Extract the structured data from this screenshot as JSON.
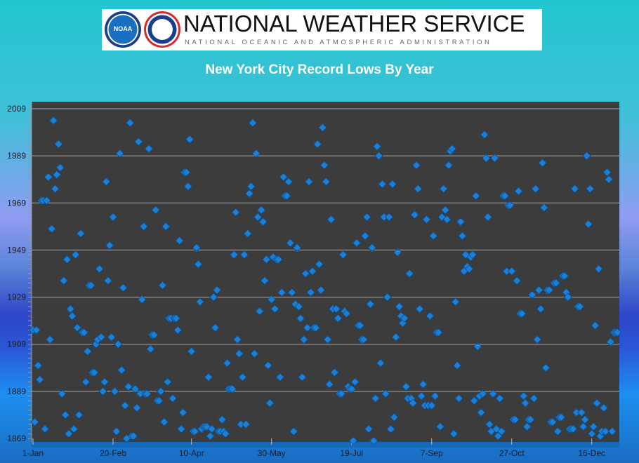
{
  "header": {
    "org_name": "NATIONAL WEATHER SERVICE",
    "org_subtitle": "NATIONAL OCEANIC AND ATMOSPHERIC ADMINISTRATION",
    "noaa_logo_text": "NOAA"
  },
  "chart_data": {
    "type": "scatter",
    "title": "New York City Record Lows By Year",
    "xlabel": "",
    "ylabel": "",
    "x_tick_labels": [
      "1-Jan",
      "20-Feb",
      "10-Apr",
      "30-May",
      "19-Jul",
      "7-Sep",
      "27-Oct",
      "16-Dec"
    ],
    "x_tick_days": [
      1,
      51,
      100,
      150,
      200,
      250,
      300,
      350
    ],
    "y_ticks": [
      1869,
      1889,
      1909,
      1929,
      1949,
      1969,
      1989,
      2009
    ],
    "ylim": [
      1869,
      2009
    ],
    "xlim_days": [
      1,
      366
    ],
    "grid": "horizontal",
    "marker_color": "#1b7fd6",
    "plot_background": "#3c3c3c",
    "x_unit": "day of year (points in date order)",
    "y_unit": "year of record low",
    "values": [
      1915,
      1876,
      1915,
      1900,
      1894,
      1970,
      1970,
      1873,
      1970,
      1980,
      1911,
      1958,
      2004,
      1975,
      1981,
      1994,
      1984,
      1888,
      1936,
      1879,
      1945,
      1871,
      1924,
      1921,
      1873,
      1947,
      1916,
      1879,
      1956,
      1914,
      1914,
      1893,
      1906,
      1934,
      1934,
      1897,
      1897,
      1909,
      1911,
      1941,
      1912,
      1889,
      1893,
      1978,
      1936,
      1951,
      1912,
      1963,
      1889,
      1872,
      1909,
      1990,
      1898,
      1933,
      1883,
      1869,
      1891,
      2003,
      1870,
      1870,
      1890,
      1882,
      1995,
      1888,
      1928,
      1959,
      1888,
      1888,
      1992,
      1907,
      1913,
      1913,
      1966,
      1885,
      1885,
      1889,
      1934,
      1876,
      1959,
      1893,
      1920,
      1920,
      1886,
      1920,
      1920,
      1915,
      1953,
      1873,
      1880,
      1982,
      1982,
      1976,
      1996,
      1906,
      1872,
      1872,
      1950,
      1943,
      1927,
      1873,
      1874,
      1874,
      1874,
      1895,
      1870,
      1873,
      1929,
      1916,
      1932,
      1872,
      1872,
      1877,
      1872,
      1871,
      1901,
      1890,
      1890,
      1890,
      1947,
      1965,
      1911,
      1905,
      1875,
      1895,
      1947,
      1875,
      1956,
      1973,
      1976,
      2003,
      1905,
      1990,
      1963,
      1923,
      1966,
      1961,
      1936,
      1945,
      1900,
      1884,
      1928,
      1946,
      1924,
      1945,
      1945,
      1895,
      1931,
      1980,
      1972,
      1972,
      1978,
      1952,
      1931,
      1872,
      1926,
      1950,
      1925,
      1920,
      1895,
      1911,
      1939,
      1916,
      1978,
      1931,
      1940,
      1916,
      1916,
      1994,
      1943,
      1932,
      2001,
      1985,
      1978,
      1911,
      1892,
      1962,
      1924,
      1897,
      1924,
      1920,
      1888,
      1888,
      1947,
      1923,
      1922,
      1891,
      1890,
      1890,
      1868,
      1893,
      1952,
      1917,
      1917,
      1911,
      1911,
      1955,
      1963,
      1873,
      1926,
      1950,
      1868,
      1886,
      1993,
      1989,
      1901,
      1977,
      1963,
      1888,
      1929,
      1963,
      1873,
      1977,
      1878,
      1912,
      1948,
      1925,
      1921,
      1918,
      1920,
      1891,
      1886,
      1939,
      1886,
      1884,
      1964,
      1985,
      1975,
      1924,
      1887,
      1892,
      1883,
      1962,
      1883,
      1921,
      1883,
      1955,
      1887,
      1914,
      1914,
      1874,
      1963,
      1975,
      1966,
      1962,
      1985,
      1991,
      1992,
      1871,
      1927,
      1900,
      1886,
      1961,
      1955,
      1940,
      1947,
      1942,
      1941,
      1946,
      1947,
      1885,
      1972,
      1908,
      1887,
      1880,
      1888,
      1998,
      1988,
      1963,
      1875,
      1872,
      1888,
      1988,
      1873,
      1870,
      1886,
      1872,
      1972,
      1972,
      1940,
      1968,
      1968,
      1940,
      1877,
      1877,
      1936,
      1974,
      1922,
      1922,
      1887,
      1884,
      1874,
      1877,
      1877,
      1930,
      1886,
      1975,
      1911,
      1932,
      1924,
      1986,
      1967,
      1899,
      1932,
      1932,
      1876,
      1876,
      1935,
      1935,
      1872,
      1878,
      1878,
      1938,
      1938,
      1931,
      1929,
      1873,
      1873,
      1873,
      1975,
      1880,
      1925,
      1925,
      1880,
      1874,
      1877,
      1989,
      1960,
      1975,
      1871,
      1874,
      1917,
      1884,
      1941,
      1870,
      1872,
      1882,
      1872,
      1982,
      1979,
      1910,
      1872,
      1914,
      1914,
      1914
    ]
  }
}
